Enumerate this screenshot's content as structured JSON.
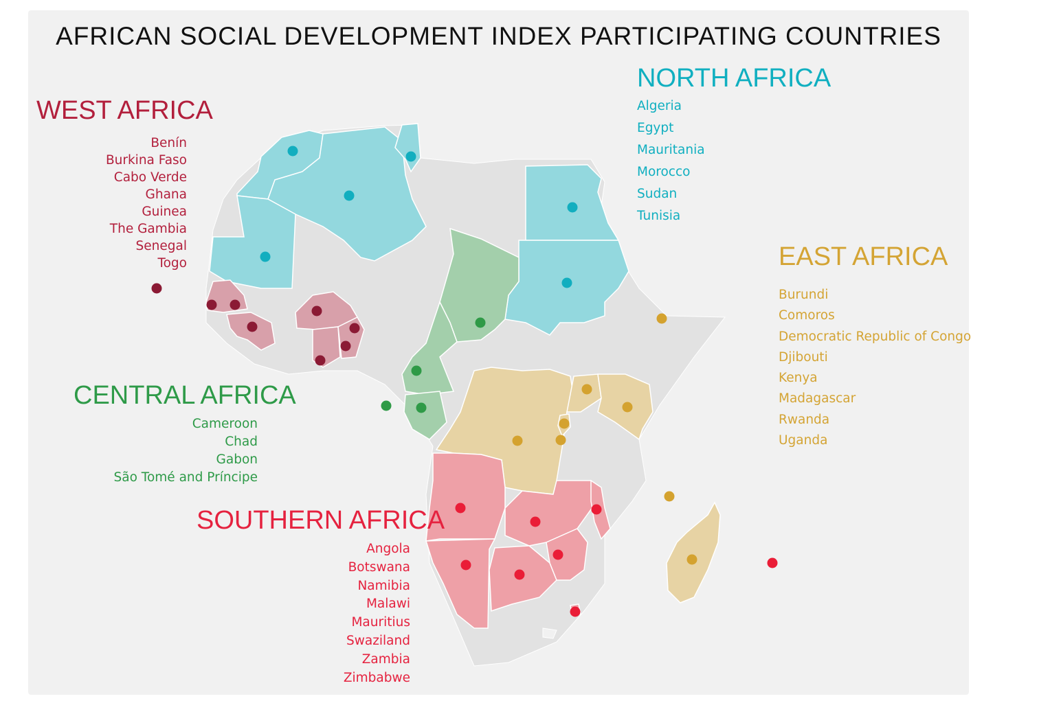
{
  "title": "AFRICAN SOCIAL DEVELOPMENT INDEX PARTICIPATING COUNTRIES",
  "colors": {
    "background": "#f1f1f1",
    "land_other": "#e2e2e2",
    "north": {
      "label": "#10afc0",
      "fill": "#93d8de",
      "dot": "#12aebf"
    },
    "west": {
      "label": "#b21f3c",
      "fill": "#d8a0aa",
      "dot": "#8b1a34"
    },
    "central": {
      "label": "#2e9a48",
      "fill": "#a3cfab",
      "dot": "#2f9a47"
    },
    "east": {
      "label": "#d4a434",
      "fill": "#e7d3a4",
      "dot": "#d4a22f"
    },
    "southern": {
      "label": "#e5223f",
      "fill": "#eea0a7",
      "dot": "#ea1d37"
    }
  },
  "regions": {
    "north": {
      "title": "NORTH AFRICA",
      "countries": [
        "Algeria",
        "Egypt",
        "Mauritania",
        "Morocco",
        "Sudan",
        "Tunisia"
      ]
    },
    "west": {
      "title": "WEST AFRICA",
      "countries": [
        "Benín",
        "Burkina Faso",
        "Cabo Verde",
        "Ghana",
        "Guinea",
        "The Gambia",
        "Senegal",
        "Togo"
      ]
    },
    "central": {
      "title": "CENTRAL AFRICA",
      "countries": [
        "Cameroon",
        "Chad",
        "Gabon",
        "São Tomé and Príncipe"
      ]
    },
    "east": {
      "title": "EAST AFRICA",
      "countries": [
        "Burundi",
        "Comoros",
        "Democratic Republic of Congo",
        "Djibouti",
        "Kenya",
        "Madagascar",
        "Rwanda",
        "Uganda"
      ]
    },
    "southern": {
      "title": "SOUTHERN AFRICA",
      "countries": [
        "Angola",
        "Botswana",
        "Namibia",
        "Malawi",
        "Mauritius",
        "Swaziland",
        "Zambia",
        "Zimbabwe"
      ]
    }
  }
}
